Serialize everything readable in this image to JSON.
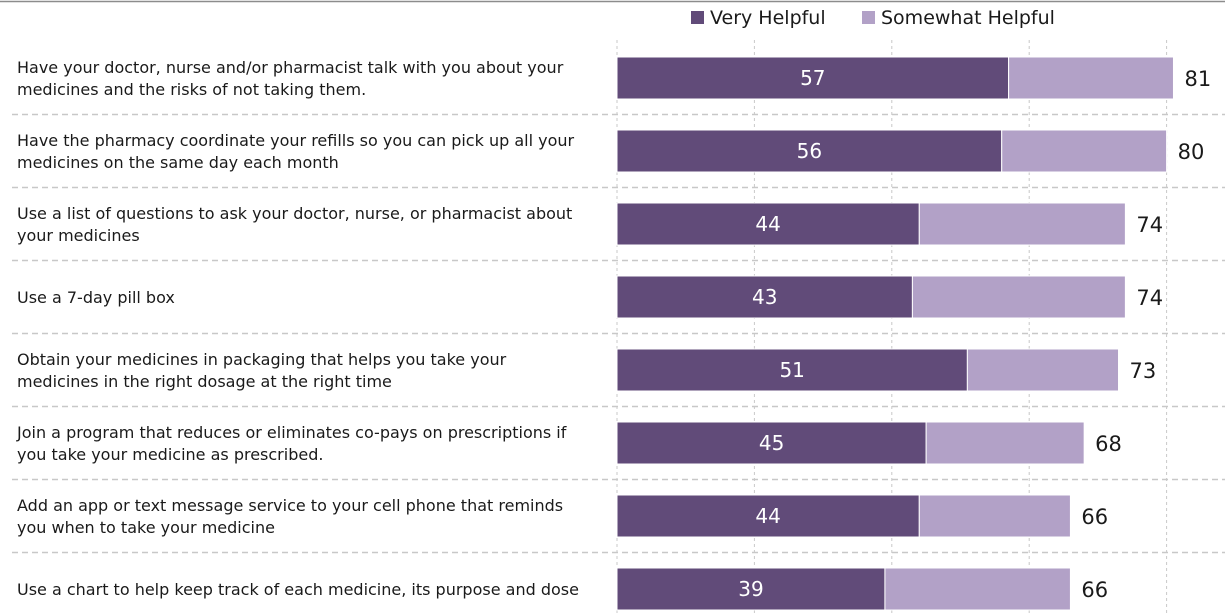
{
  "chart_data": {
    "type": "bar",
    "orientation": "horizontal",
    "stacked": true,
    "categories": [
      [
        "Have your doctor, nurse and/or pharmacist talk with you about your",
        "medicines and the risks of not taking them."
      ],
      [
        "Have the pharmacy coordinate your refills so you can pick up all your",
        "medicines on the same day each month"
      ],
      [
        "Use a list of questions to ask your doctor, nurse, or pharmacist about",
        "your medicines"
      ],
      [
        "Use a 7-day pill box"
      ],
      [
        "Obtain your medicines in packaging that helps you take your",
        "medicines in the right dosage at the right time"
      ],
      [
        "Join a program that reduces or eliminates co-pays on prescriptions if",
        "you take your medicine as prescribed."
      ],
      [
        "Add an app or text message service to your cell phone that reminds",
        "you when to take your medicine"
      ],
      [
        "Use a chart to help keep track of each medicine, its purpose and dose"
      ]
    ],
    "series": [
      {
        "name": "Very Helpful",
        "color": "#614b79",
        "values": [
          57,
          56,
          44,
          43,
          51,
          45,
          44,
          39
        ]
      },
      {
        "name": "Somewhat Helpful",
        "color": "#b2a1c7",
        "values": [
          24,
          24,
          30,
          31,
          22,
          23,
          22,
          27
        ]
      }
    ],
    "totals": [
      81,
      80,
      74,
      74,
      73,
      68,
      66,
      66
    ],
    "xlim": [
      0,
      80
    ],
    "grid": true,
    "legend": "top"
  }
}
